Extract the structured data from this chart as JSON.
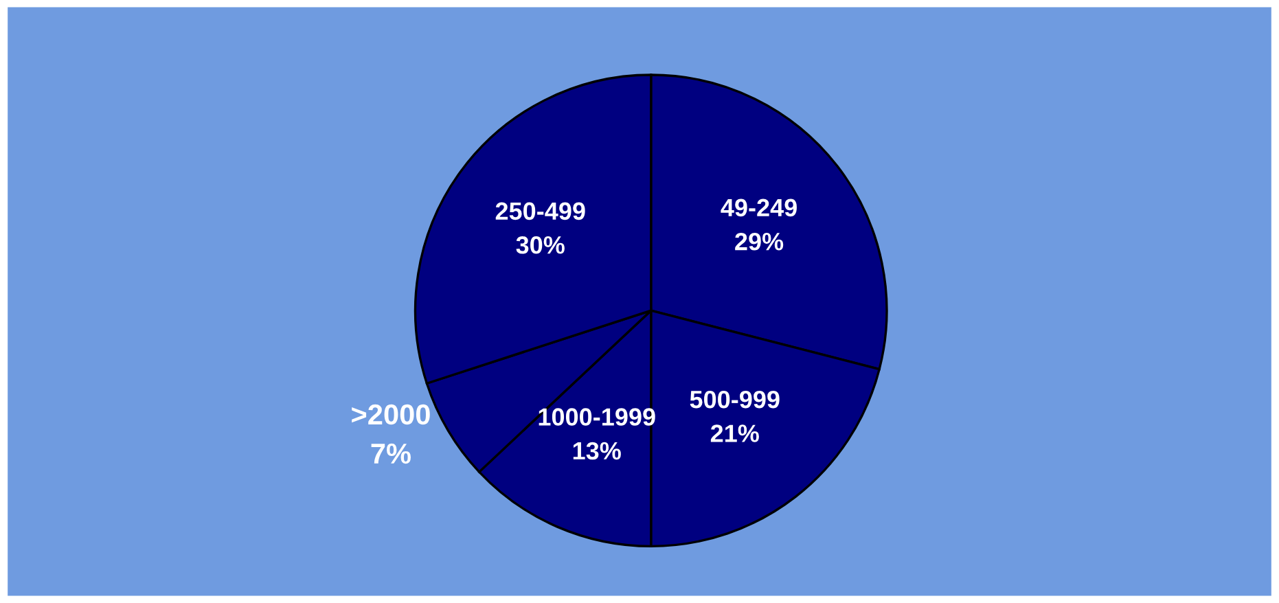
{
  "chart_data": {
    "type": "pie",
    "categories": [
      "49-249",
      "500-999",
      "1000-1999",
      ">2000",
      "250-499"
    ],
    "values": [
      29,
      21,
      13,
      7,
      30
    ],
    "value_labels": [
      "29%",
      "21%",
      "13%",
      "7%",
      "30%"
    ],
    "colors": [
      "#000080",
      "#000080",
      "#000080",
      "#000080",
      "#000080"
    ]
  }
}
